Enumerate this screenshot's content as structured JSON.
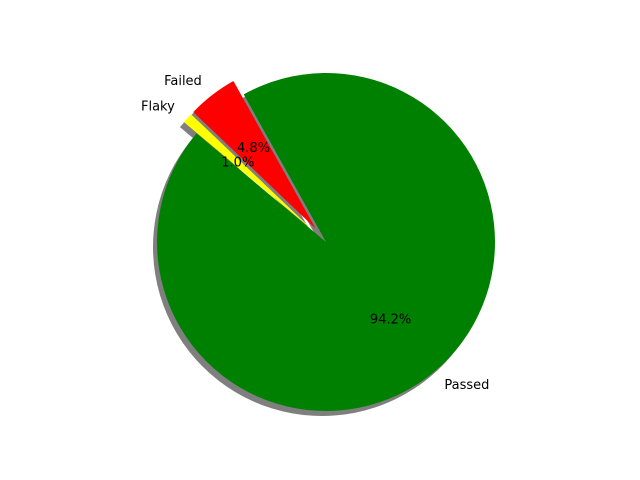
{
  "chart_data": {
    "type": "pie",
    "title": "",
    "slices": [
      {
        "label": "Passed",
        "value": 94.2,
        "pct_label": "94.2%",
        "color": "#008000",
        "exploded": false
      },
      {
        "label": "Failed",
        "value": 4.8,
        "pct_label": "4.8%",
        "color": "#ff0000",
        "exploded": true
      },
      {
        "label": "Flaky",
        "value": 1.0,
        "pct_label": "1.0%",
        "color": "#ffff00",
        "exploded": true
      }
    ],
    "start_angle_deg": 140,
    "direction": "counterclockwise",
    "shadow": true,
    "legend": "none"
  }
}
